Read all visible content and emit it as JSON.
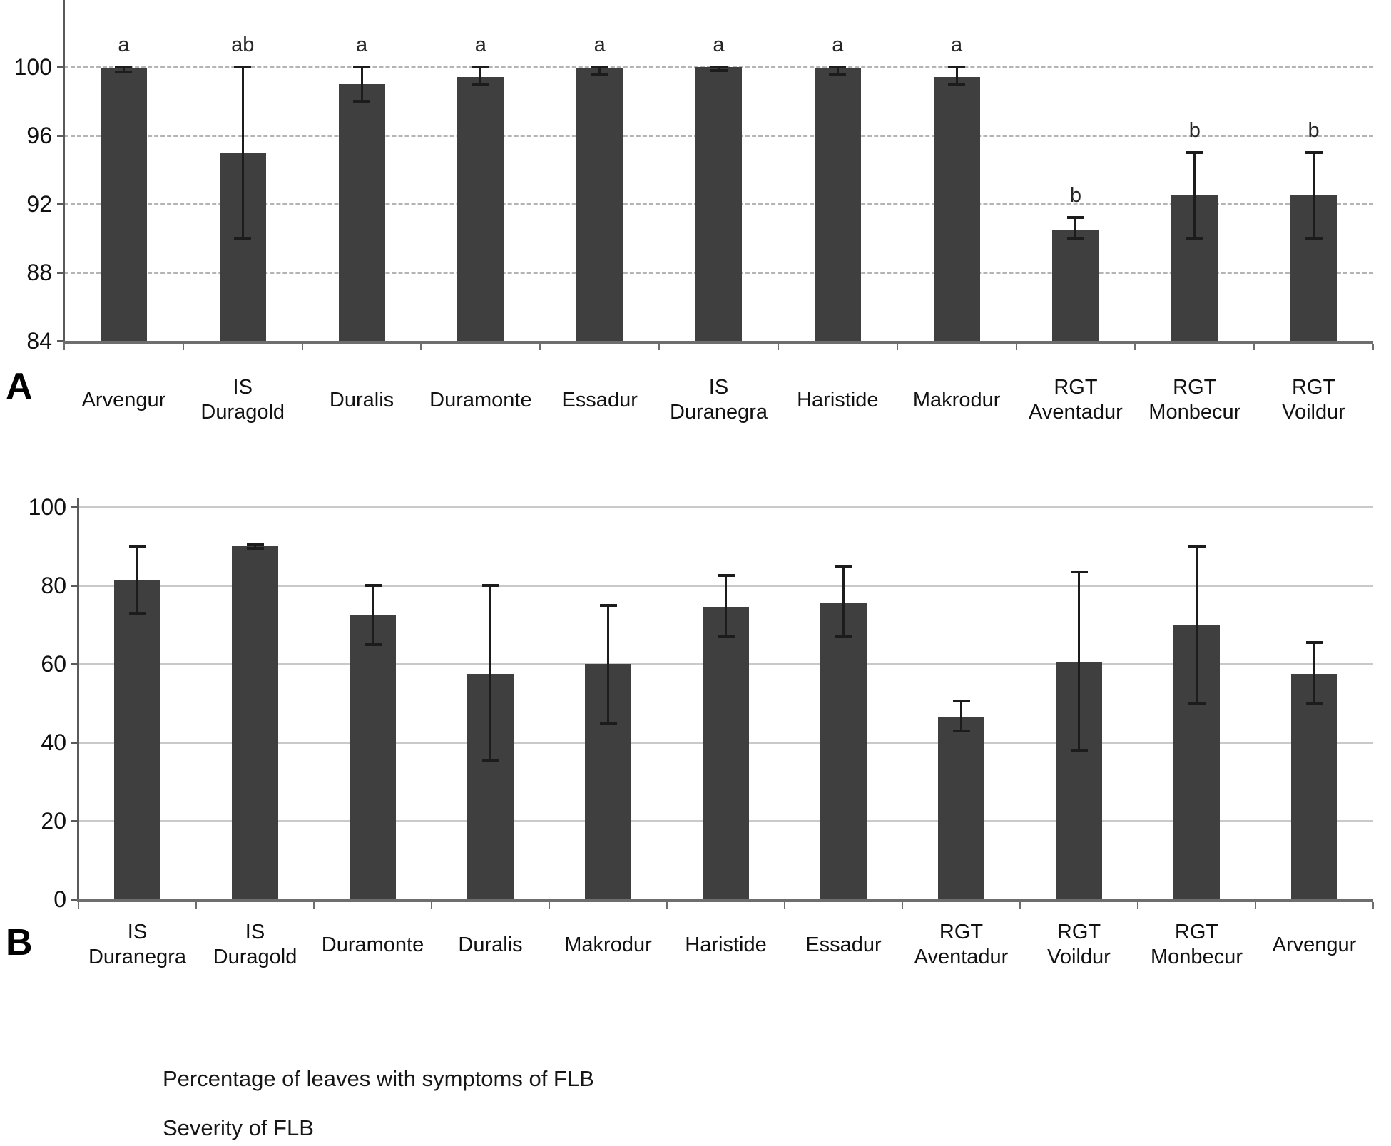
{
  "figure": {
    "panel_a_label": "A",
    "panel_b_label": "B",
    "captions": [
      "Percentage of leaves with symptoms of FLB",
      "Severity of FLB"
    ]
  },
  "colors": {
    "bar": "#3f3f3f",
    "error_bar": "#1c1c1c",
    "grid_panel_a": "#b4b4b4",
    "grid_panel_b": "#c9c9c9",
    "axis": "#6e6e6e",
    "text": "#111111"
  },
  "chart_data": [
    {
      "panel_label": "A",
      "type": "bar",
      "title": "",
      "xlabel": "",
      "ylabel": "",
      "grid": "horizontal dashed",
      "legend_position": "none",
      "yticks": [
        84,
        88,
        92,
        96,
        100
      ],
      "ylim": [
        84,
        104
      ],
      "categories": [
        "Arvengur",
        "IS Duragold",
        "Duralis",
        "Duramonte",
        "Essadur",
        "IS Duranegra",
        "Haristide",
        "Makrodur",
        "RGT Aventadur",
        "RGT Monbecur",
        "RGT Voildur"
      ],
      "values": [
        99.9,
        95,
        99,
        99.4,
        99.9,
        100,
        99.9,
        99.4,
        90.5,
        92.5,
        92.5
      ],
      "error_low": [
        99.7,
        90,
        98,
        99,
        99.6,
        99.8,
        99.6,
        99,
        90,
        90,
        90
      ],
      "error_high": [
        100,
        100,
        100,
        100,
        100,
        100,
        100,
        100,
        91.2,
        95,
        95
      ],
      "sig_letters": [
        "a",
        "ab",
        "a",
        "a",
        "a",
        "a",
        "a",
        "a",
        "b",
        "b",
        "b"
      ]
    },
    {
      "panel_label": "B",
      "type": "bar",
      "title": "",
      "xlabel": "",
      "ylabel": "",
      "grid": "horizontal solid",
      "legend_position": "none",
      "yticks": [
        0,
        20,
        40,
        60,
        80,
        100
      ],
      "ylim": [
        0,
        100
      ],
      "categories": [
        "IS Duranegra",
        "IS Duragold",
        "Duramonte",
        "Duralis",
        "Makrodur",
        "Haristide",
        "Essadur",
        "RGT Aventadur",
        "RGT Voildur",
        "RGT Monbecur",
        "Arvengur"
      ],
      "values": [
        81.5,
        90,
        72.5,
        57.5,
        60,
        74.5,
        75.5,
        46.5,
        60.5,
        70,
        57.5
      ],
      "error_low": [
        73,
        89.5,
        65,
        35.5,
        45,
        67,
        67,
        43,
        38,
        50,
        50
      ],
      "error_high": [
        90,
        90.5,
        80,
        80,
        75,
        82.5,
        85,
        50.5,
        83.5,
        90,
        65.5
      ],
      "sig_letters": []
    }
  ]
}
